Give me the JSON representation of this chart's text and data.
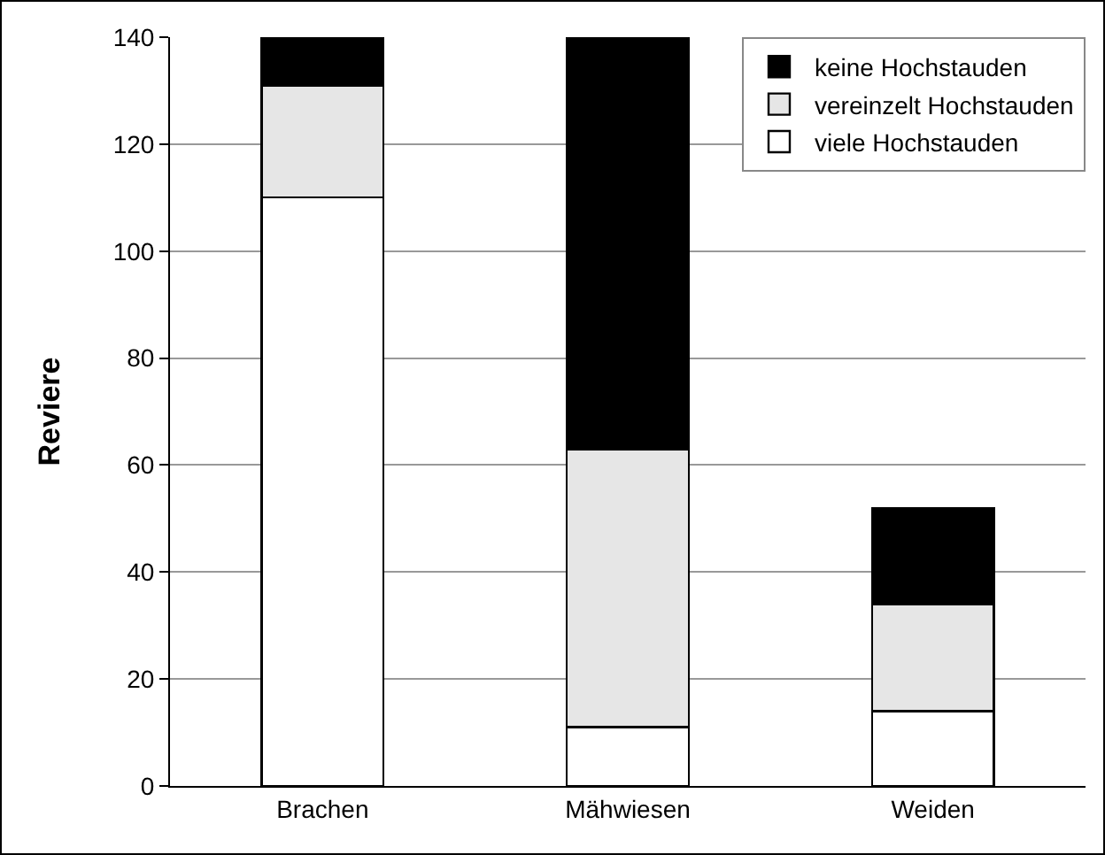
{
  "chart_data": {
    "type": "bar",
    "stacked": true,
    "ylabel": "Reviere",
    "categories": [
      "Brachen",
      "Mähwiesen",
      "Weiden"
    ],
    "series": [
      {
        "name": "viele Hochstauden",
        "color": "#ffffff",
        "values": [
          110,
          11,
          14
        ]
      },
      {
        "name": "vereinzelt Hochstauden",
        "color": "#e6e6e6",
        "values": [
          21,
          52,
          20
        ]
      },
      {
        "name": "keine Hochstauden",
        "color": "#000000",
        "values": [
          9,
          77,
          18
        ]
      }
    ],
    "ylim": [
      0,
      140
    ],
    "yticks": [
      0,
      20,
      40,
      60,
      80,
      100,
      120,
      140
    ],
    "grid": "y",
    "legend": "top right"
  }
}
